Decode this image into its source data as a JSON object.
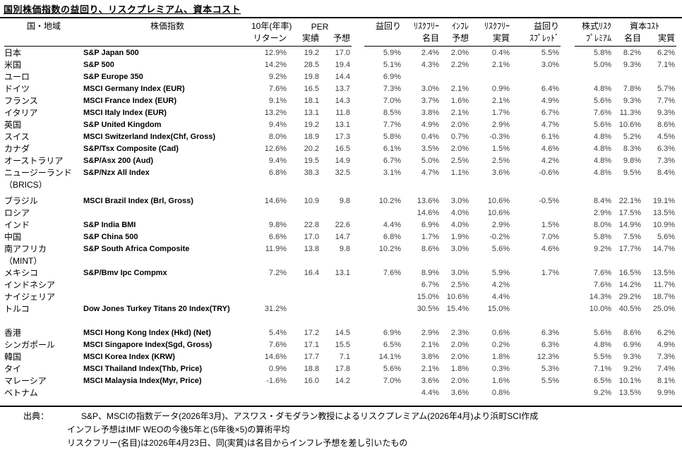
{
  "title": "国別株価指数の益回り、リスクプレミアム、資本コスト",
  "table": {
    "headers": {
      "country": "国・地域",
      "index": "株価指数",
      "ret_line1": "10年(年率)",
      "ret_line2": "リターン",
      "per": "PER",
      "per_actual": "実績",
      "per_forecast": "予想",
      "yield": "益回り",
      "rf_nominal_1": "ﾘｽｸﾌﾘｰ",
      "rf_nominal_2": "名目",
      "inflation_1": "ｲﾝﾌﾚ",
      "inflation_2": "予想",
      "rf_real_1": "ﾘｽｸﾌﾘｰ",
      "rf_real_2": "実質",
      "spread_1": "益回り",
      "spread_2": "ｽﾌﾟﾚｯﾄﾞ",
      "erp_1": "株式ﾘｽｸ",
      "erp_2": "ﾌﾟﾚﾐｱﾑ",
      "cost": "資本ｺｽﾄ",
      "cost_nominal": "名目",
      "cost_real": "実質"
    },
    "rows": [
      {
        "c": "日本",
        "i": "S&P Japan 500",
        "v": [
          "12.9%",
          "19.2",
          "17.0",
          "5.9%",
          "2.4%",
          "2.0%",
          "0.4%",
          "5.5%",
          "5.8%",
          "8.2%",
          "6.2%"
        ]
      },
      {
        "c": "米国",
        "i": "S&P 500",
        "v": [
          "14.2%",
          "28.5",
          "19.4",
          "5.1%",
          "4.3%",
          "2.2%",
          "2.1%",
          "3.0%",
          "5.0%",
          "9.3%",
          "7.1%"
        ]
      },
      {
        "c": "ユーロ",
        "i": "S&P Europe 350",
        "v": [
          "9.2%",
          "19.8",
          "14.4",
          "6.9%",
          "",
          "",
          "",
          "",
          "",
          "",
          ""
        ]
      },
      {
        "c": "ドイツ",
        "i": "MSCI Germany Index (EUR)",
        "v": [
          "7.6%",
          "16.5",
          "13.7",
          "7.3%",
          "3.0%",
          "2.1%",
          "0.9%",
          "6.4%",
          "4.8%",
          "7.8%",
          "5.7%"
        ]
      },
      {
        "c": "フランス",
        "i": "MSCI France Index (EUR)",
        "v": [
          "9.1%",
          "18.1",
          "14.3",
          "7.0%",
          "3.7%",
          "1.6%",
          "2.1%",
          "4.9%",
          "5.6%",
          "9.3%",
          "7.7%"
        ]
      },
      {
        "c": "イタリア",
        "i": "MSCI Italy Index (EUR)",
        "v": [
          "13.2%",
          "13.1",
          "11.8",
          "8.5%",
          "3.8%",
          "2.1%",
          "1.7%",
          "6.7%",
          "7.6%",
          "11.3%",
          "9.3%"
        ]
      },
      {
        "c": "英国",
        "i": "S&P United Kingdom",
        "v": [
          "9.4%",
          "19.2",
          "13.1",
          "7.7%",
          "4.9%",
          "2.0%",
          "2.9%",
          "4.7%",
          "5.6%",
          "10.6%",
          "8.6%"
        ]
      },
      {
        "c": "スイス",
        "i": "MSCI Switzerland Index(Chf, Gross)",
        "v": [
          "8.0%",
          "18.9",
          "17.3",
          "5.8%",
          "0.4%",
          "0.7%",
          "-0.3%",
          "6.1%",
          "4.8%",
          "5.2%",
          "4.5%"
        ]
      },
      {
        "c": "カナダ",
        "i": "S&P/Tsx Composite (Cad)",
        "v": [
          "12.6%",
          "20.2",
          "16.5",
          "6.1%",
          "3.5%",
          "2.0%",
          "1.5%",
          "4.6%",
          "4.8%",
          "8.3%",
          "6.3%"
        ]
      },
      {
        "c": "オーストラリア",
        "i": "S&P/Asx 200 (Aud)",
        "v": [
          "9.4%",
          "19.5",
          "14.9",
          "6.7%",
          "5.0%",
          "2.5%",
          "2.5%",
          "4.2%",
          "4.8%",
          "9.8%",
          "7.3%"
        ]
      },
      {
        "c": "ニュージーランド",
        "i": "S&P/Nzx All Index",
        "v": [
          "6.8%",
          "38.3",
          "32.5",
          "3.1%",
          "4.7%",
          "1.1%",
          "3.6%",
          "-0.6%",
          "4.8%",
          "9.5%",
          "8.4%"
        ]
      },
      {
        "c": "（BRICS）",
        "label": true
      },
      {
        "c": "ブラジル",
        "i": "MSCI Brazil Index (Brl, Gross)",
        "pad": true,
        "v": [
          "14.6%",
          "10.9",
          "9.8",
          "10.2%",
          "13.6%",
          "3.0%",
          "10.6%",
          "-0.5%",
          "8.4%",
          "22.1%",
          "19.1%"
        ]
      },
      {
        "c": "ロシア",
        "i": "",
        "v": [
          "",
          "",
          "",
          "",
          "14.6%",
          "4.0%",
          "10.6%",
          "",
          "2.9%",
          "17.5%",
          "13.5%"
        ]
      },
      {
        "c": "インド",
        "i": "S&P India BMI",
        "v": [
          "9.8%",
          "22.8",
          "22.6",
          "4.4%",
          "6.9%",
          "4.0%",
          "2.9%",
          "1.5%",
          "8.0%",
          "14.9%",
          "10.9%"
        ]
      },
      {
        "c": "中国",
        "i": "S&P China 500",
        "v": [
          "6.6%",
          "17.0",
          "14.7",
          "6.8%",
          "1.7%",
          "1.9%",
          "-0.2%",
          "7.0%",
          "5.8%",
          "7.5%",
          "5.6%"
        ]
      },
      {
        "c": "南アフリカ",
        "i": "S&P South Africa Composite",
        "v": [
          "11.9%",
          "13.8",
          "9.8",
          "10.2%",
          "8.6%",
          "3.0%",
          "5.6%",
          "4.6%",
          "9.2%",
          "17.7%",
          "14.7%"
        ]
      },
      {
        "c": "（MINT）",
        "label": true
      },
      {
        "c": "メキシコ",
        "i": "S&P/Bmv Ipc Compmx",
        "v": [
          "7.2%",
          "16.4",
          "13.1",
          "7.6%",
          "8.9%",
          "3.0%",
          "5.9%",
          "1.7%",
          "7.6%",
          "16.5%",
          "13.5%"
        ]
      },
      {
        "c": "インドネシア",
        "i": "",
        "v": [
          "",
          "",
          "",
          "",
          "6.7%",
          "2.5%",
          "4.2%",
          "",
          "7.6%",
          "14.2%",
          "11.7%"
        ]
      },
      {
        "c": "ナイジェリア",
        "i": "",
        "v": [
          "",
          "",
          "",
          "",
          "15.0%",
          "10.6%",
          "4.4%",
          "",
          "14.3%",
          "29.2%",
          "18.7%"
        ]
      },
      {
        "c": "トルコ",
        "i": "Dow Jones Turkey Titans 20 Index(TRY)",
        "v": [
          "31.2%",
          "",
          "",
          "",
          "30.5%",
          "15.4%",
          "15.0%",
          "",
          "10.0%",
          "40.5%",
          "25.0%"
        ]
      },
      {
        "spacer": true
      },
      {
        "c": "香港",
        "i": "MSCI Hong Kong Index  (Hkd) (Net)",
        "v": [
          "5.4%",
          "17.2",
          "14.5",
          "6.9%",
          "2.9%",
          "2.3%",
          "0.6%",
          "6.3%",
          "5.6%",
          "8.6%",
          "6.2%"
        ]
      },
      {
        "c": "シンガポール",
        "i": "MSCI Singapore Index(Sgd, Gross)",
        "v": [
          "7.6%",
          "17.1",
          "15.5",
          "6.5%",
          "2.1%",
          "2.0%",
          "0.2%",
          "6.3%",
          "4.8%",
          "6.9%",
          "4.9%"
        ]
      },
      {
        "c": "韓国",
        "i": "MSCI Korea Index (KRW)",
        "v": [
          "14.6%",
          "17.7",
          "7.1",
          "14.1%",
          "3.8%",
          "2.0%",
          "1.8%",
          "12.3%",
          "5.5%",
          "9.3%",
          "7.3%"
        ]
      },
      {
        "c": "タイ",
        "i": "MSCI Thailand Index(Thb, Price)",
        "v": [
          "0.9%",
          "18.8",
          "17.8",
          "5.6%",
          "2.1%",
          "1.8%",
          "0.3%",
          "5.3%",
          "7.1%",
          "9.2%",
          "7.4%"
        ]
      },
      {
        "c": "マレーシア",
        "i": "MSCI Malaysia Index(Myr, Price)",
        "v": [
          "-1.6%",
          "16.0",
          "14.2",
          "7.0%",
          "3.6%",
          "2.0%",
          "1.6%",
          "5.5%",
          "6.5%",
          "10.1%",
          "8.1%"
        ]
      },
      {
        "c": "ベトナム",
        "i": "",
        "v": [
          "",
          "",
          "",
          "",
          "4.4%",
          "3.6%",
          "0.8%",
          "",
          "9.2%",
          "13.5%",
          "9.9%"
        ]
      }
    ]
  },
  "footer": {
    "source_label": "出典：",
    "line1": "S&P、MSCIの指数データ(2026年3月)、アスワス・ダモダラン教授によるリスクプレミアム(2026年4月)より浜町SCI作成",
    "line2": "インフレ予想はIMF WEOの今後5年と(5年後×5)の算術平均",
    "line3": "リスクフリー(名目)は2026年4月23日、同(実質)は名目からインフレ予想を差し引いたもの"
  }
}
